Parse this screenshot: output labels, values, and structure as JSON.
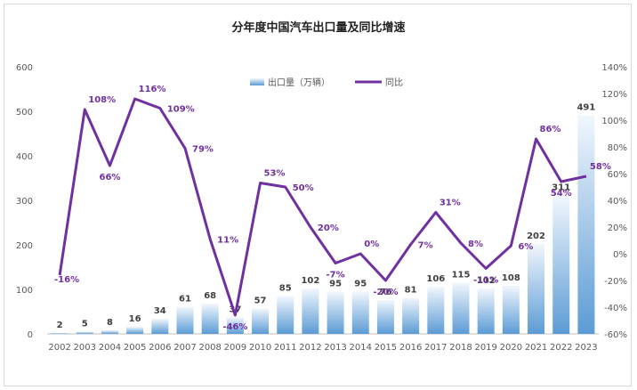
{
  "chart_data": {
    "type": "bar+line",
    "title": "分年度中国汽车出口量及同比增速",
    "categories": [
      "2002",
      "2003",
      "2004",
      "2005",
      "2006",
      "2007",
      "2008",
      "2009",
      "2010",
      "2011",
      "2012",
      "2013",
      "2014",
      "2015",
      "2016",
      "2017",
      "2018",
      "2019",
      "2020",
      "2021",
      "2022",
      "2023"
    ],
    "series": [
      {
        "name": "出口量（万辆）",
        "type": "bar",
        "axis": "left",
        "values": [
          2,
          5,
          8,
          16,
          34,
          61,
          68,
          37,
          57,
          85,
          102,
          95,
          95,
          76,
          81,
          106,
          115,
          102,
          108,
          202,
          311,
          491
        ],
        "labels": [
          "2",
          "5",
          "8",
          "16",
          "34",
          "61",
          "68",
          "37",
          "57",
          "85",
          "102",
          "95",
          "95",
          "76",
          "81",
          "106",
          "115",
          "102",
          "108",
          "202",
          "311",
          "491"
        ]
      },
      {
        "name": "同比",
        "type": "line",
        "axis": "right",
        "values": [
          -16,
          108,
          66,
          116,
          109,
          79,
          11,
          -46,
          53,
          50,
          20,
          -7,
          0,
          -20,
          7,
          31,
          8,
          -11,
          6,
          86,
          54,
          58
        ],
        "labels": [
          "-16%",
          "108%",
          "66%",
          "116%",
          "109%",
          "79%",
          "11%",
          "-46%",
          "53%",
          "50%",
          "20%",
          "-7%",
          "0%",
          "-20%",
          "7%",
          "31%",
          "8%",
          "-11%",
          "6%",
          "86%",
          "54%",
          "58%"
        ]
      }
    ],
    "y_left": {
      "min": 0,
      "max": 600,
      "ticks": [
        "0",
        "100",
        "200",
        "300",
        "400",
        "500",
        "600"
      ]
    },
    "y_right": {
      "min": -60,
      "max": 140,
      "ticks": [
        "-60%",
        "-40%",
        "-20%",
        "0%",
        "20%",
        "40%",
        "60%",
        "80%",
        "100%",
        "120%",
        "140%"
      ]
    },
    "legend": {
      "position": "top-right",
      "items": [
        "出口量（万辆）",
        "同比"
      ]
    },
    "colors": {
      "bar_top": "#f2f7fd",
      "bar_bottom": "#5b9bd5",
      "line": "#7030a0"
    }
  }
}
